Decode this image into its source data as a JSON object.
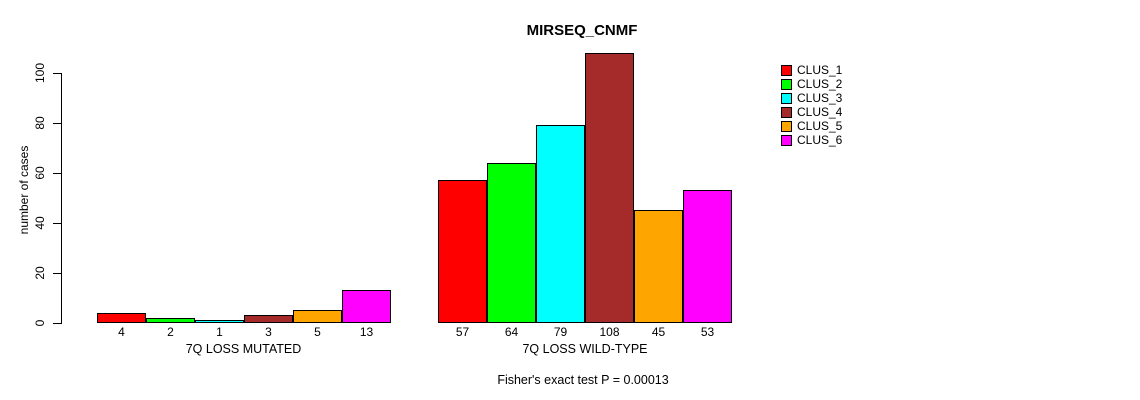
{
  "chart_data": {
    "type": "bar",
    "title": "MIRSEQ_CNMF",
    "ylabel": "number of cases",
    "xlabel": "",
    "ylim": [
      0,
      108
    ],
    "yticks": [
      0,
      20,
      40,
      60,
      80,
      100
    ],
    "grid": false,
    "legend_position": "top-right",
    "categories": [
      "7Q LOSS MUTATED",
      "7Q LOSS WILD-TYPE"
    ],
    "series": [
      {
        "name": "CLUS_1",
        "color": "#FF0000",
        "values": [
          4,
          57
        ]
      },
      {
        "name": "CLUS_2",
        "color": "#00FF00",
        "values": [
          2,
          64
        ]
      },
      {
        "name": "CLUS_3",
        "color": "#00FFFF",
        "values": [
          1,
          79
        ]
      },
      {
        "name": "CLUS_4",
        "color": "#A52A2A",
        "values": [
          3,
          108
        ]
      },
      {
        "name": "CLUS_5",
        "color": "#FFA500",
        "values": [
          5,
          45
        ]
      },
      {
        "name": "CLUS_6",
        "color": "#FF00FF",
        "values": [
          13,
          53
        ]
      }
    ],
    "bar_value_labels": [
      [
        4,
        2,
        1,
        3,
        5,
        13
      ],
      [
        57,
        64,
        79,
        108,
        45,
        53
      ]
    ],
    "annotation": "Fisher's exact test P = 0.00013"
  }
}
